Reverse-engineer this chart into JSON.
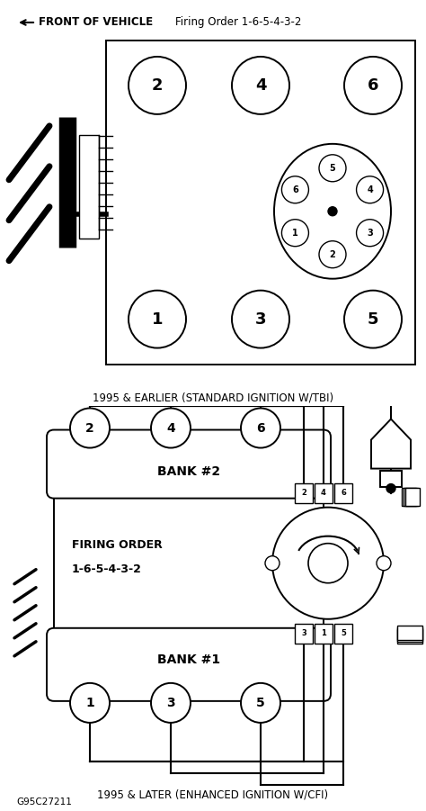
{
  "title_arrow_text": "FRONT OF VEHICLE",
  "title_firing": "Firing Order 1-6-5-4-3-2",
  "subtitle1": "1995 & EARLIER (STANDARD IGNITION W/TBI)",
  "subtitle2": "1995 & LATER (ENHANCED IGNITION W/CFI)",
  "footer": "G95C27211",
  "bank2_label": "BANK #2",
  "bank1_label": "BANK #1",
  "firing_order_line1": "FIRING ORDER",
  "firing_order_line2": "1-6-5-4-3-2",
  "bg_color": "#ffffff",
  "line_color": "#000000",
  "dist_angles": [
    150,
    90,
    30,
    330,
    270,
    210
  ],
  "dist_nums": [
    "6",
    "5",
    "4",
    "3",
    "2",
    "1"
  ]
}
